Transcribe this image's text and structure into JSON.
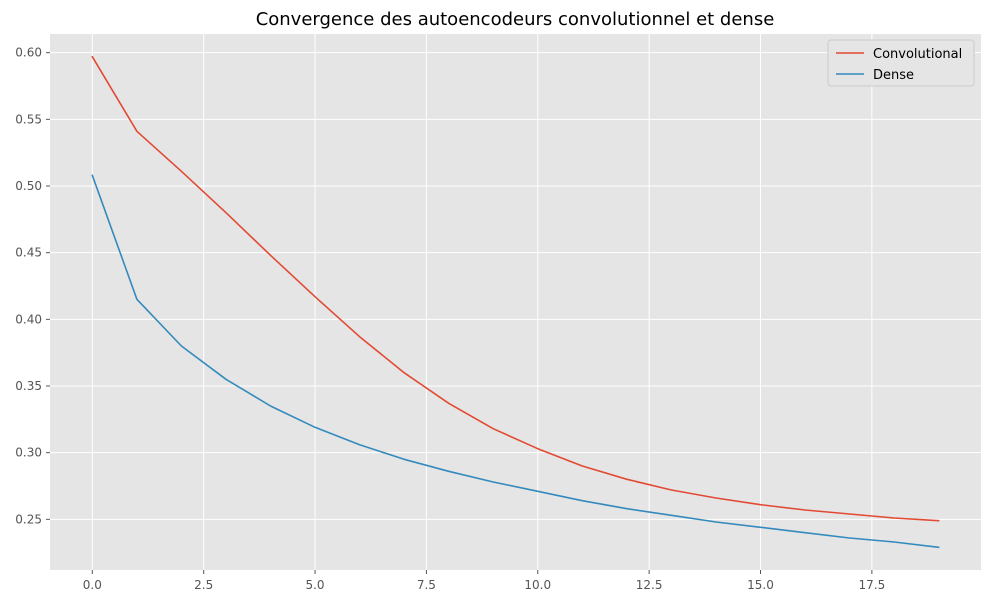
{
  "chart_data": {
    "type": "line",
    "title": "Convergence des autoencodeurs convolutionnel et dense",
    "xlabel": "",
    "ylabel": "",
    "x": [
      0,
      1,
      2,
      3,
      4,
      5,
      6,
      7,
      8,
      9,
      10,
      11,
      12,
      13,
      14,
      15,
      16,
      17,
      18,
      19
    ],
    "xlim": [
      -0.95,
      19.95
    ],
    "ylim": [
      0.212,
      0.614
    ],
    "xticks": [
      0.0,
      2.5,
      5.0,
      7.5,
      10.0,
      12.5,
      15.0,
      17.5
    ],
    "xtick_labels": [
      "0.0",
      "2.5",
      "5.0",
      "7.5",
      "10.0",
      "12.5",
      "15.0",
      "17.5"
    ],
    "yticks": [
      0.25,
      0.3,
      0.35,
      0.4,
      0.45,
      0.5,
      0.55,
      0.6
    ],
    "ytick_labels": [
      "0.25",
      "0.30",
      "0.35",
      "0.40",
      "0.45",
      "0.50",
      "0.55",
      "0.60"
    ],
    "grid": true,
    "legend_position": "top-right",
    "series": [
      {
        "name": "Convolutional",
        "color": "#e24a33",
        "values": [
          0.597,
          0.541,
          0.511,
          0.48,
          0.448,
          0.417,
          0.387,
          0.36,
          0.337,
          0.318,
          0.303,
          0.29,
          0.28,
          0.272,
          0.266,
          0.261,
          0.257,
          0.254,
          0.251,
          0.249
        ]
      },
      {
        "name": "Dense",
        "color": "#348abd",
        "values": [
          0.508,
          0.415,
          0.38,
          0.355,
          0.335,
          0.319,
          0.306,
          0.295,
          0.286,
          0.278,
          0.271,
          0.264,
          0.258,
          0.253,
          0.248,
          0.244,
          0.24,
          0.236,
          0.233,
          0.229
        ]
      }
    ]
  }
}
